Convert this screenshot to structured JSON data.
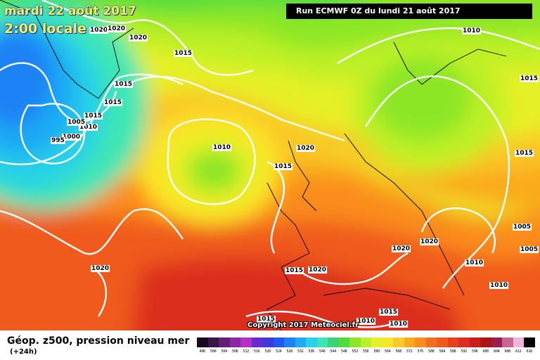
{
  "header": {
    "date": "mardi 22 août 2017",
    "local_time": "2:00 locale",
    "run": "Run ECMWF 0Z du lundi 21 août 2017"
  },
  "copyright": "Copyright 2017 Meteociel.fr",
  "footer": {
    "field": "Géop. z500, pression niveau mer",
    "lead_time": "(+24h)"
  },
  "legend": {
    "labels": [
      "496",
      "500",
      "504",
      "508",
      "512",
      "516",
      "520",
      "524",
      "528",
      "532",
      "536",
      "540",
      "544",
      "548",
      "552",
      "556",
      "560",
      "564",
      "568",
      "572",
      "576",
      "580",
      "584",
      "588",
      "592",
      "596",
      "600",
      "604",
      "608",
      "612",
      "616"
    ],
    "colors": [
      "#1a0a1e",
      "#3c1546",
      "#641e78",
      "#8c28a0",
      "#b432c8",
      "#6a2ad0",
      "#3c3cdc",
      "#1e5af0",
      "#1e82f5",
      "#1eaaf5",
      "#28d2e6",
      "#3ce6b4",
      "#3cd278",
      "#50dc3c",
      "#8ce628",
      "#bef028",
      "#e6f028",
      "#fae628",
      "#fac828",
      "#faaa1e",
      "#fa8c1e",
      "#f06e1e",
      "#f05a1e",
      "#e6411e",
      "#dc2d1e",
      "#c81e1e",
      "#aa1414",
      "#961e50",
      "#c86496",
      "#f0b4dc",
      "#000000"
    ]
  },
  "isobars": [
    "1020",
    "1020",
    "1020",
    "1015",
    "1015",
    "1015",
    "1015",
    "1010",
    "1005",
    "1000",
    "995",
    "1010",
    "1020",
    "1015",
    "1010",
    "1015",
    "1015",
    "1005",
    "1005",
    "1020",
    "1020",
    "1010",
    "1010",
    "1020",
    "1015",
    "1020",
    "1015",
    "1010",
    "1015",
    "1010"
  ]
}
